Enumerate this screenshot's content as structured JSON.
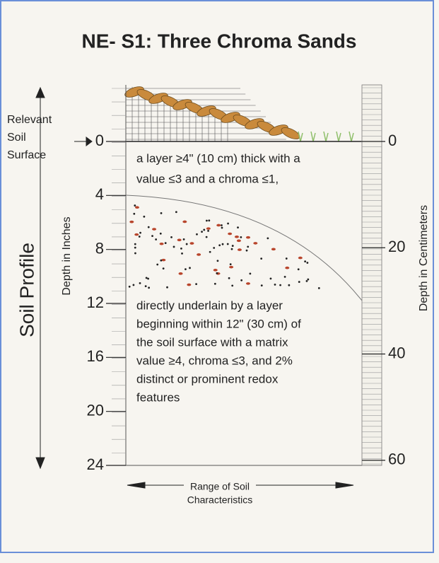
{
  "title": "NE- S1: Three Chroma Sands",
  "surface_label": [
    "Relevant",
    "Soil",
    "Surface"
  ],
  "profile_label": "Soil Profile",
  "left_axis_label": "Depth in Inches",
  "right_axis_label": "Depth in Centimeters",
  "inch_ticks": [
    "0",
    "4",
    "8",
    "12",
    "16",
    "20",
    "24"
  ],
  "cm_ticks": [
    "0",
    "20",
    "40",
    "60"
  ],
  "upper_text": [
    "a layer ≥4\" (10 cm) thick with a",
    "value ≤3 and a chroma ≤1,"
  ],
  "lower_text": [
    "directly underlain by a layer",
    "beginning within 12\" (30 cm) of",
    "the soil surface with a matrix",
    "value ≥4, chroma ≤3, and 2%",
    "distinct or prominent redox",
    "features"
  ],
  "footer": [
    "Range of Soil",
    "Characteristics"
  ]
}
